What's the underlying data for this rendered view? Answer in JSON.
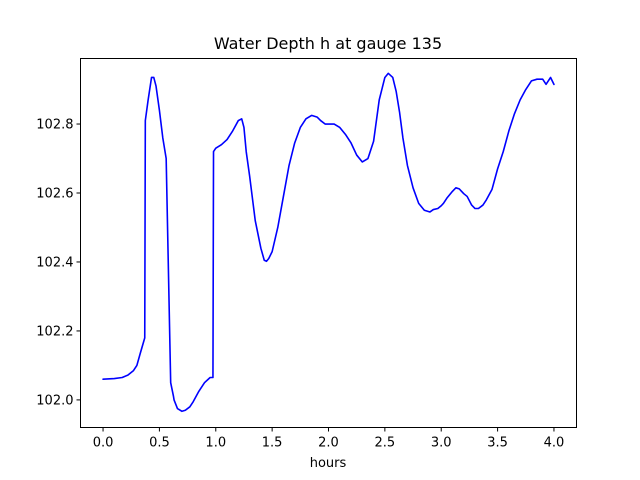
{
  "chart_data": {
    "type": "line",
    "title": "Water Depth h at gauge 135",
    "xlabel": "hours",
    "ylabel": "",
    "xlim": [
      -0.2,
      4.2
    ],
    "ylim": [
      101.92,
      102.99
    ],
    "xticks": [
      0.0,
      0.5,
      1.0,
      1.5,
      2.0,
      2.5,
      3.0,
      3.5,
      4.0
    ],
    "xtick_labels": [
      "0.0",
      "0.5",
      "1.0",
      "1.5",
      "2.0",
      "2.5",
      "3.0",
      "3.5",
      "4.0"
    ],
    "yticks": [
      102.0,
      102.2,
      102.4,
      102.6,
      102.8
    ],
    "ytick_labels": [
      "102.0",
      "102.2",
      "102.4",
      "102.6",
      "102.8"
    ],
    "grid": false,
    "series": [
      {
        "color": "#0000ff",
        "x": [
          0.0,
          0.1,
          0.17,
          0.22,
          0.27,
          0.3,
          0.33,
          0.37,
          0.375,
          0.4,
          0.43,
          0.45,
          0.47,
          0.5,
          0.53,
          0.56,
          0.6,
          0.625,
          0.63,
          0.66,
          0.7,
          0.73,
          0.77,
          0.8,
          0.85,
          0.9,
          0.95,
          0.975,
          0.98,
          1.0,
          1.05,
          1.1,
          1.15,
          1.2,
          1.23,
          1.25,
          1.27,
          1.3,
          1.35,
          1.4,
          1.43,
          1.45,
          1.47,
          1.5,
          1.55,
          1.6,
          1.65,
          1.7,
          1.75,
          1.8,
          1.85,
          1.9,
          1.93,
          1.97,
          2.0,
          2.05,
          2.1,
          2.15,
          2.2,
          2.25,
          2.3,
          2.35,
          2.4,
          2.45,
          2.5,
          2.53,
          2.57,
          2.6,
          2.63,
          2.66,
          2.7,
          2.75,
          2.8,
          2.85,
          2.9,
          2.93,
          2.97,
          3.0,
          3.02,
          3.05,
          3.1,
          3.13,
          3.16,
          3.18,
          3.2,
          3.23,
          3.27,
          3.3,
          3.33,
          3.37,
          3.4,
          3.45,
          3.5,
          3.55,
          3.6,
          3.65,
          3.7,
          3.75,
          3.8,
          3.85,
          3.9,
          3.93,
          3.97,
          4.0
        ],
        "y": [
          102.06,
          102.062,
          102.065,
          102.072,
          102.085,
          102.1,
          102.135,
          102.18,
          102.81,
          102.87,
          102.935,
          102.935,
          102.91,
          102.84,
          102.76,
          102.7,
          102.05,
          102.01,
          102.0,
          101.975,
          101.967,
          101.97,
          101.98,
          101.995,
          102.025,
          102.05,
          102.065,
          102.065,
          102.72,
          102.73,
          102.74,
          102.755,
          102.78,
          102.81,
          102.815,
          102.79,
          102.72,
          102.65,
          102.52,
          102.44,
          102.405,
          102.402,
          102.41,
          102.43,
          102.5,
          102.59,
          102.68,
          102.745,
          102.79,
          102.815,
          102.825,
          102.82,
          102.81,
          102.8,
          102.8,
          102.8,
          102.79,
          102.77,
          102.745,
          102.71,
          102.69,
          102.7,
          102.75,
          102.87,
          102.935,
          102.947,
          102.935,
          102.895,
          102.835,
          102.76,
          102.68,
          102.615,
          102.57,
          102.55,
          102.545,
          102.552,
          102.555,
          102.563,
          102.57,
          102.585,
          102.605,
          102.615,
          102.612,
          102.605,
          102.598,
          102.59,
          102.565,
          102.555,
          102.555,
          102.565,
          102.58,
          102.61,
          102.67,
          102.72,
          102.78,
          102.83,
          102.87,
          102.9,
          102.925,
          102.93,
          102.93,
          102.915,
          102.935,
          102.915
        ]
      }
    ]
  }
}
